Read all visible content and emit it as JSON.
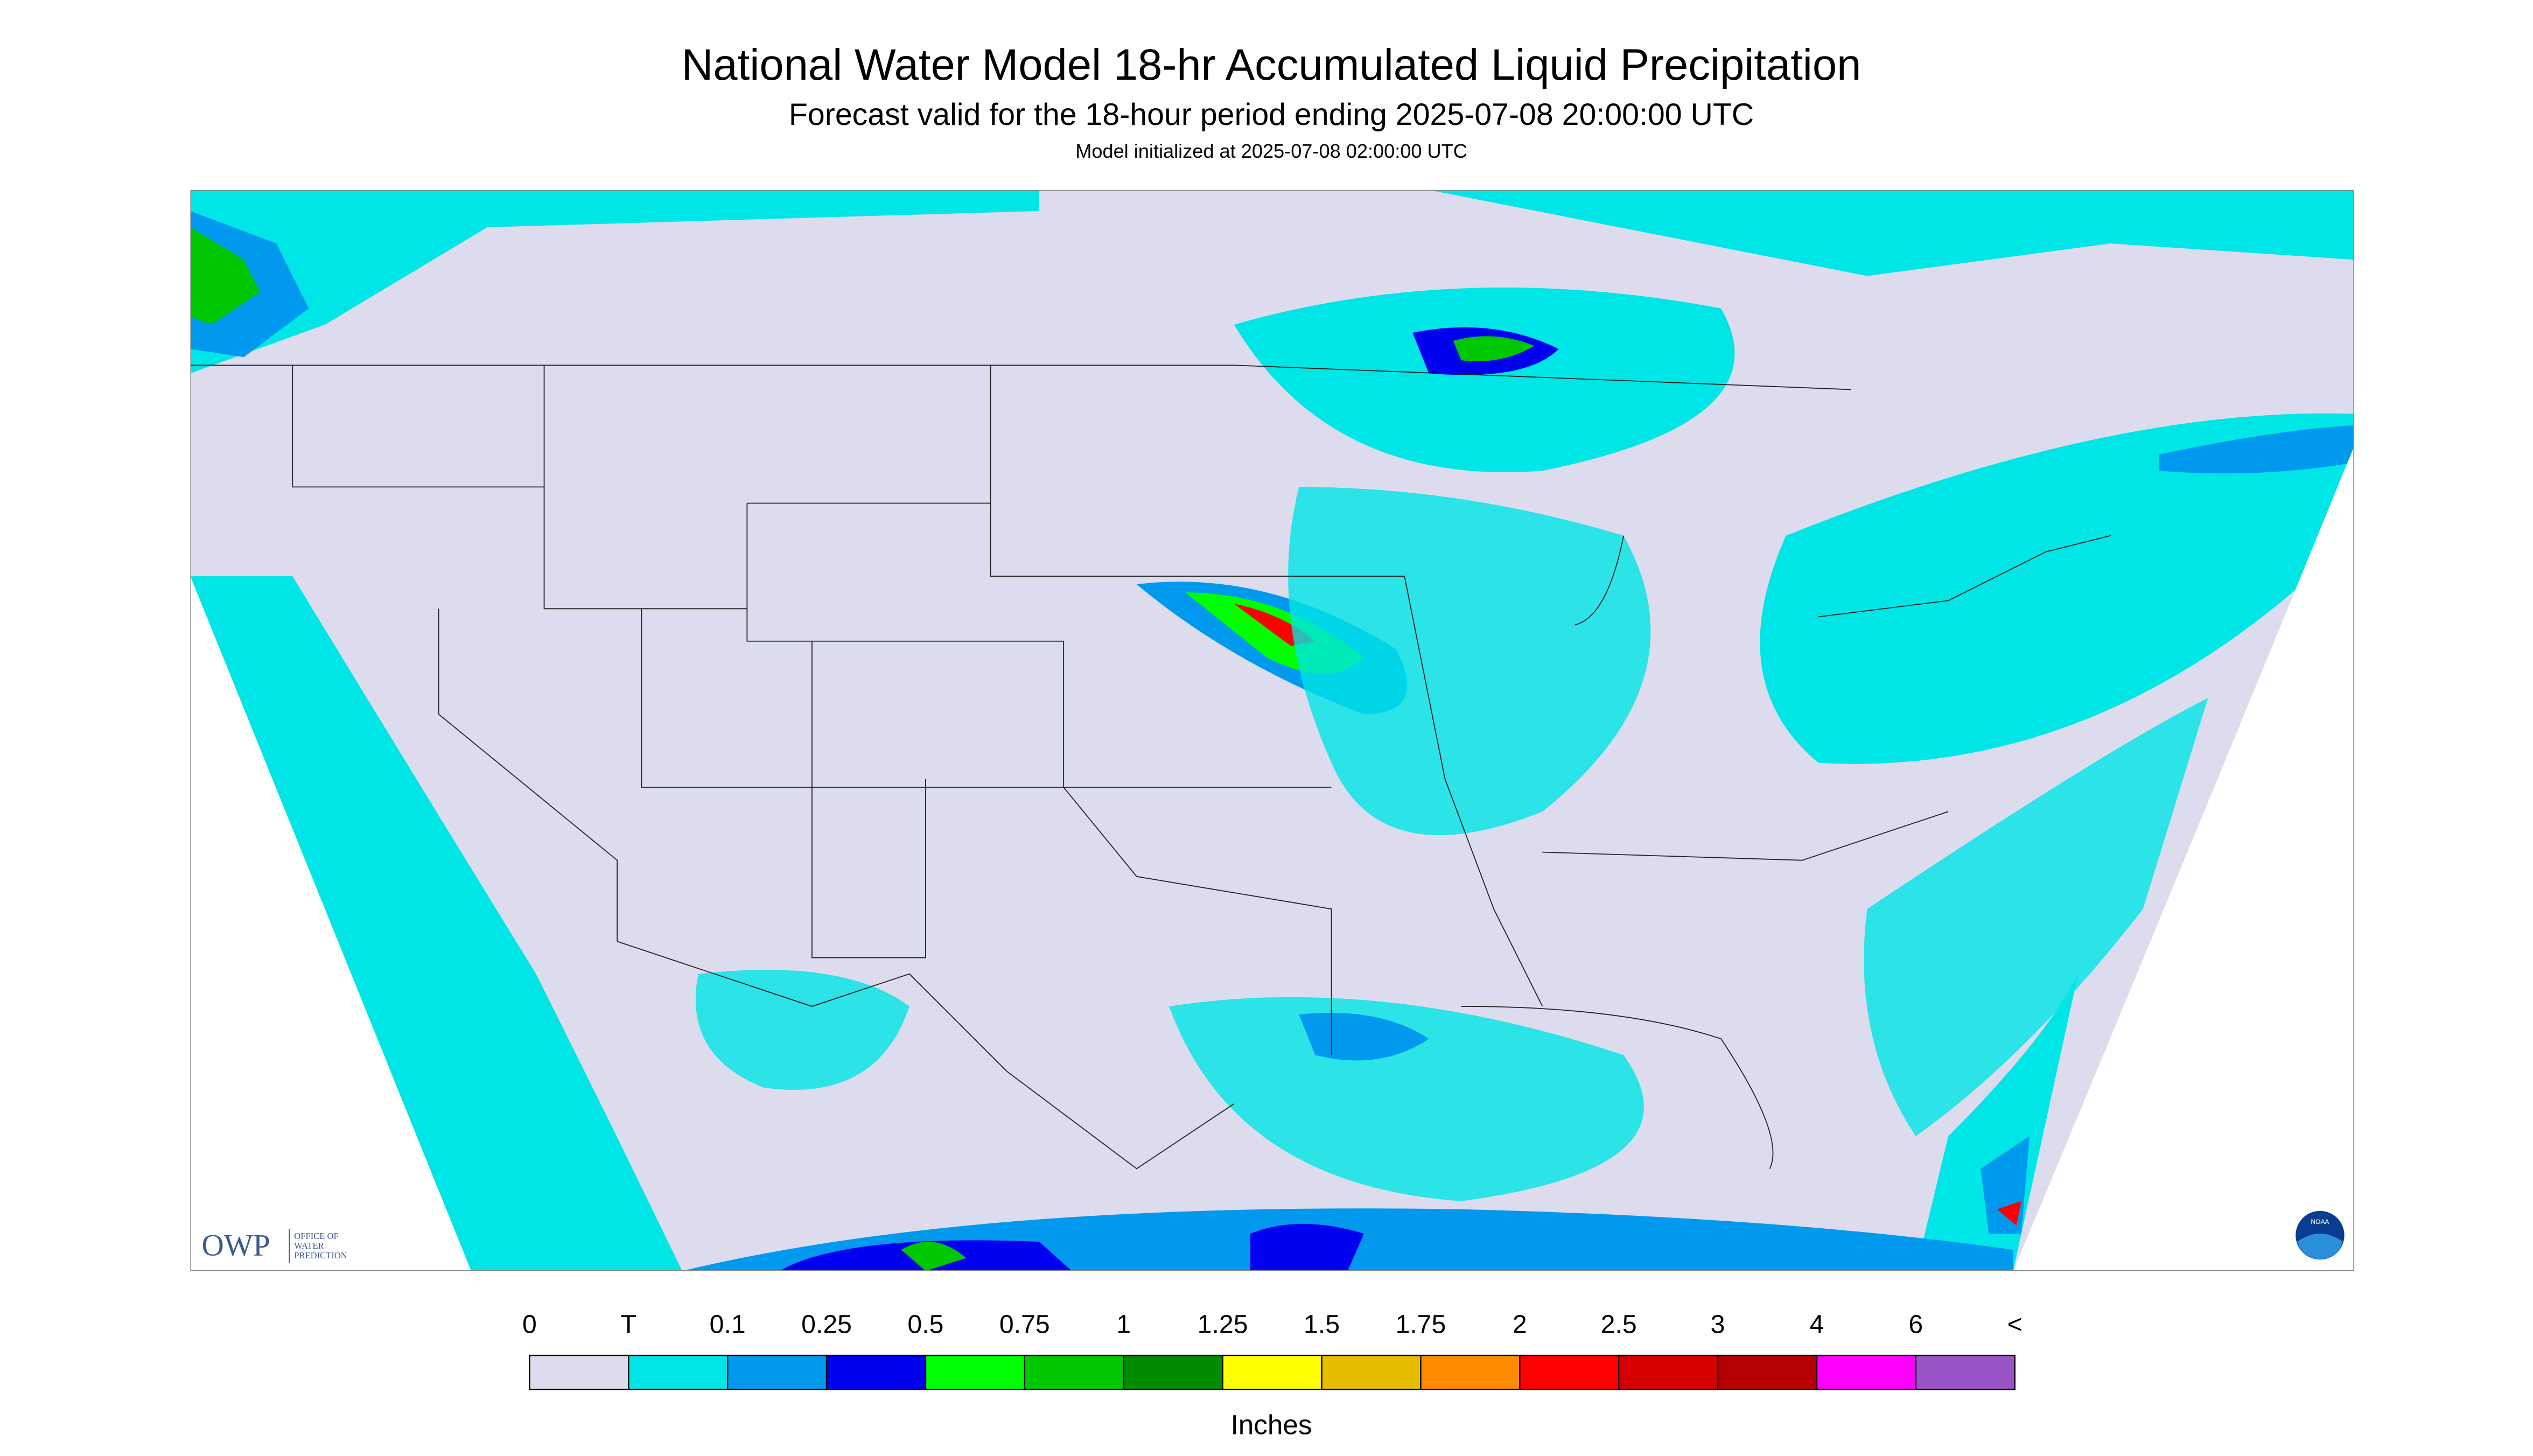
{
  "header": {
    "title": "National Water Model 18-hr Accumulated Liquid Precipitation",
    "subtitle": "Forecast valid for the 18-hour period ending 2025-07-08 20:00:00 UTC",
    "init": "Model initialized at 2025-07-08 02:00:00 UTC"
  },
  "logos": {
    "owp": "OWP",
    "owp_text": [
      "OFFICE OF",
      "WATER",
      "PREDICTION"
    ],
    "noaa": "NOAA"
  },
  "legend": {
    "labels": [
      "0",
      "T",
      "0.1",
      "0.25",
      "0.5",
      "0.75",
      "1",
      "1.25",
      "1.5",
      "1.75",
      "2",
      "2.5",
      "3",
      "4",
      "6",
      "<"
    ],
    "colors": [
      "#dcdcee",
      "#00e5e5",
      "#0099ee",
      "#0000f0",
      "#00ff00",
      "#00c800",
      "#008c00",
      "#ffff00",
      "#e6be00",
      "#ff8c00",
      "#ff0000",
      "#d70000",
      "#b40000",
      "#ff00ff",
      "#9955c8"
    ],
    "unit": "Inches"
  }
}
